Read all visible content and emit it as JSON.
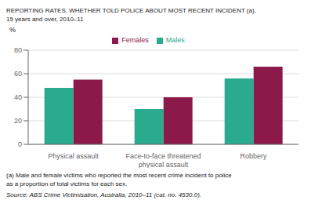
{
  "chart_data": {
    "type": "bar",
    "title": "REPORTING RATES, WHETHER TOLD POLICE ABOUT MOST RECENT INCIDENT (a),",
    "subtitle": "15 years and over, 2010–11",
    "categories": [
      "Physical assault",
      "Face-to-face threatened\nphysical assault",
      "Robbery"
    ],
    "series": [
      {
        "name": "Males",
        "color": "#2aab8e",
        "values": [
          48,
          30,
          56
        ]
      },
      {
        "name": "Females",
        "color": "#8b1a4a",
        "values": [
          55,
          40,
          66
        ]
      }
    ],
    "y_label": "%",
    "ylim": [
      0,
      80
    ],
    "yticks": [
      0,
      20,
      40,
      60,
      80
    ],
    "grid": true,
    "legend": "top",
    "annotations": [
      "(a) Male and female victims who reported the most recent crime incident to police",
      "as a proportion of total victims for each sex.",
      "Source: ABS Crime Victimisation, Australia, 2010–11 (cat. no. 4530.0)."
    ]
  }
}
